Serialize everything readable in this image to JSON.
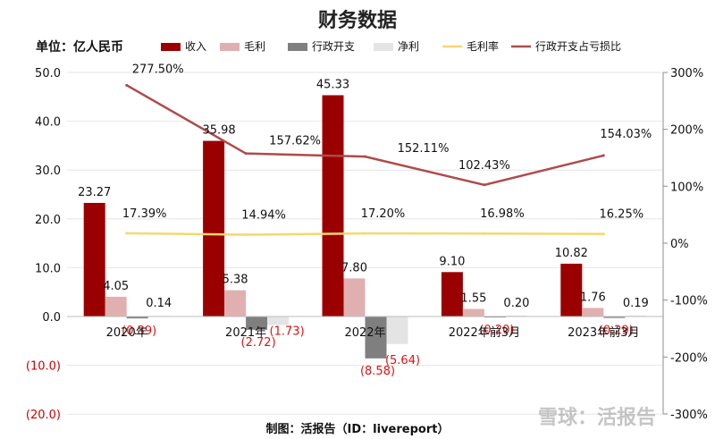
{
  "chart_data": {
    "type": "bar",
    "title": "财务数据",
    "unit_label": "单位：亿人民币",
    "categories": [
      "2020年",
      "2021年",
      "2022年",
      "2022年前3月",
      "2023年前3月"
    ],
    "series": [
      {
        "name": "收入",
        "kind": "bar",
        "axis": "left",
        "color": "#9b0000",
        "values": [
          23.27,
          35.98,
          45.33,
          9.1,
          10.82
        ],
        "labels": [
          "23.27",
          "35.98",
          "45.33",
          "9.10",
          "10.82"
        ]
      },
      {
        "name": "毛利",
        "kind": "bar",
        "axis": "left",
        "color": "#e0b0b0",
        "values": [
          4.05,
          5.38,
          7.8,
          1.55,
          1.76
        ],
        "labels": [
          "4.05",
          "5.38",
          "7.80",
          "1.55",
          "1.76"
        ]
      },
      {
        "name": "行政开支",
        "kind": "bar",
        "axis": "left",
        "color": "#7f7f7f",
        "values": [
          -0.39,
          -2.72,
          -8.58,
          -0.2,
          -0.29
        ],
        "labels": [
          "(0.39)",
          "(2.72)",
          "(8.58)",
          "(0.20)",
          "(0.29)"
        ]
      },
      {
        "name": "净利",
        "kind": "bar",
        "axis": "left",
        "color": "#e4e4e4",
        "values": [
          0.14,
          -1.73,
          -5.64,
          0.2,
          0.19
        ],
        "labels": [
          "0.14",
          "(1.73)",
          "(5.64)",
          "0.20",
          "0.19"
        ]
      },
      {
        "name": "毛利率",
        "kind": "line",
        "axis": "right",
        "color": "#f5d76e",
        "values": [
          17.39,
          14.94,
          17.2,
          16.98,
          16.25
        ],
        "labels": [
          "17.39%",
          "14.94%",
          "17.20%",
          "16.98%",
          "16.25%"
        ]
      },
      {
        "name": "行政开支占亏损比",
        "kind": "line",
        "axis": "right",
        "color": "#b04a4a",
        "values": [
          277.5,
          157.62,
          152.11,
          102.43,
          154.03
        ],
        "labels": [
          "277.50%",
          "157.62%",
          "152.11%",
          "102.43%",
          "154.03%"
        ]
      }
    ],
    "left_axis": {
      "min": -20,
      "max": 50,
      "ticks": [
        "50.0",
        "40.0",
        "30.0",
        "20.0",
        "10.0",
        "0.0",
        "(10.0)",
        "(20.0)"
      ],
      "tick_values": [
        50,
        40,
        30,
        20,
        10,
        0,
        -10,
        -20
      ]
    },
    "right_axis": {
      "min": -300,
      "max": 300,
      "ticks": [
        "300%",
        "200%",
        "100%",
        "0%",
        "-100%",
        "-200%",
        "-300%"
      ],
      "tick_values": [
        300,
        200,
        100,
        0,
        -100,
        -200,
        -300
      ]
    },
    "grid": true,
    "legend_position": "top"
  },
  "footer": "制图：活报告（ID：livereport）",
  "watermark": "雪球：活报告"
}
